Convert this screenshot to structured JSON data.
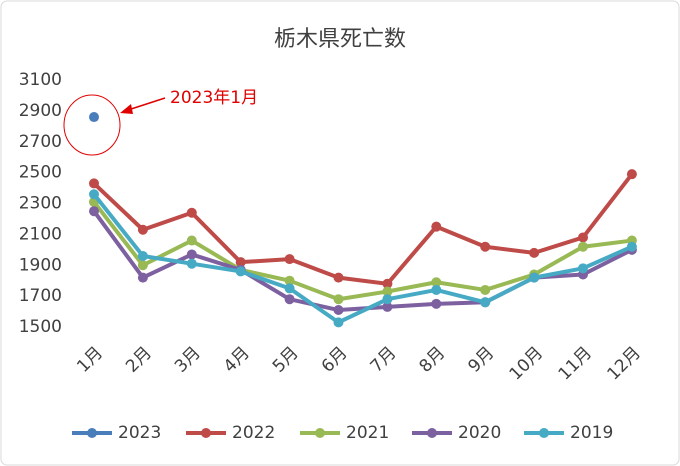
{
  "chart_data": {
    "type": "line",
    "title": "栃木県死亡数",
    "categories": [
      "1月",
      "2月",
      "3月",
      "4月",
      "5月",
      "6月",
      "7月",
      "8月",
      "9月",
      "10月",
      "11月",
      "12月"
    ],
    "series": [
      {
        "name": "2023",
        "color": "#4a7ebb",
        "values": [
          2860,
          null,
          null,
          null,
          null,
          null,
          null,
          null,
          null,
          null,
          null,
          null
        ]
      },
      {
        "name": "2022",
        "color": "#be4b48",
        "values": [
          2430,
          2130,
          2240,
          1920,
          1940,
          1820,
          1780,
          2150,
          2020,
          1980,
          2080,
          2490
        ]
      },
      {
        "name": "2021",
        "color": "#98b954",
        "values": [
          2310,
          1900,
          2060,
          1870,
          1800,
          1680,
          1730,
          1790,
          1740,
          1840,
          2020,
          2060
        ]
      },
      {
        "name": "2020",
        "color": "#7d60a0",
        "values": [
          2250,
          1820,
          1970,
          1870,
          1680,
          1610,
          1630,
          1650,
          1660,
          1820,
          1840,
          2000
        ]
      },
      {
        "name": "2019",
        "color": "#46aac5",
        "values": [
          2360,
          1960,
          1910,
          1860,
          1750,
          1530,
          1680,
          1740,
          1660,
          1820,
          1880,
          2020
        ]
      }
    ],
    "ylim": [
      1500,
      3100
    ],
    "yticks": [
      1500,
      1700,
      1900,
      2100,
      2300,
      2500,
      2700,
      2900,
      3100
    ],
    "grid": false,
    "legend": "bottom",
    "annotation": {
      "text": "2023年1月",
      "color": "#e00000"
    }
  }
}
